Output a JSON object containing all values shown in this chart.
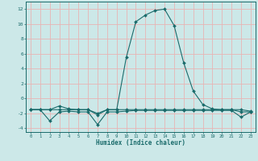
{
  "xlabel": "Humidex (Indice chaleur)",
  "x": [
    0,
    1,
    2,
    3,
    4,
    5,
    6,
    7,
    8,
    9,
    10,
    11,
    12,
    13,
    14,
    15,
    16,
    17,
    18,
    19,
    20,
    21,
    22,
    23
  ],
  "line1": [
    -1.5,
    -1.5,
    -1.5,
    -1.0,
    -1.4,
    -1.5,
    -1.5,
    -2.0,
    -1.5,
    -1.5,
    5.5,
    10.3,
    11.2,
    11.8,
    12.0,
    9.8,
    4.8,
    1.0,
    -0.8,
    -1.4,
    -1.5,
    -1.5,
    -1.8,
    -1.8
  ],
  "line2": [
    -1.5,
    -1.5,
    -3.0,
    -1.8,
    -1.7,
    -1.8,
    -1.8,
    -3.5,
    -1.8,
    -1.8,
    -1.7,
    -1.6,
    -1.6,
    -1.6,
    -1.6,
    -1.6,
    -1.6,
    -1.6,
    -1.6,
    -1.6,
    -1.6,
    -1.6,
    -2.5,
    -1.8
  ],
  "line3": [
    -1.5,
    -1.5,
    -1.5,
    -1.5,
    -1.5,
    -1.5,
    -1.5,
    -2.2,
    -1.5,
    -1.5,
    -1.5,
    -1.5,
    -1.5,
    -1.5,
    -1.5,
    -1.5,
    -1.5,
    -1.5,
    -1.5,
    -1.5,
    -1.5,
    -1.5,
    -1.5,
    -1.7
  ],
  "line_color": "#1a6b6b",
  "bg_color": "#cce8e8",
  "grid_color": "#e8b4b4",
  "ylim": [
    -4.5,
    13
  ],
  "xlim": [
    -0.5,
    23.5
  ],
  "yticks": [
    -4,
    -2,
    0,
    2,
    4,
    6,
    8,
    10,
    12
  ],
  "xticks": [
    0,
    1,
    2,
    3,
    4,
    5,
    6,
    7,
    8,
    9,
    10,
    11,
    12,
    13,
    14,
    15,
    16,
    17,
    18,
    19,
    20,
    21,
    22,
    23
  ]
}
